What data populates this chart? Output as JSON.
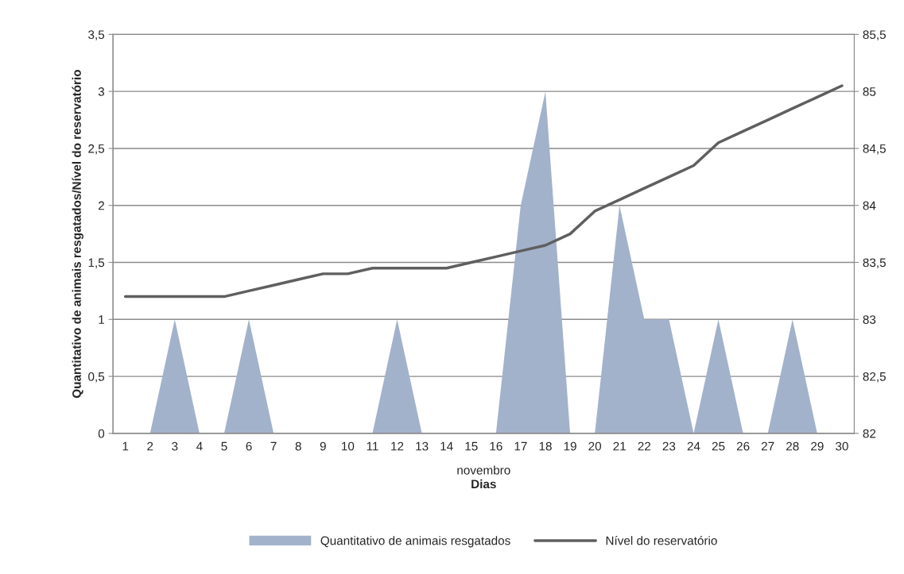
{
  "chart_data": {
    "type": "area",
    "xlabel": "Dias",
    "ylabel": "Quantitativo de animais resgatados/Nível do reservatório",
    "annotations": [
      "novembro"
    ],
    "categories": [
      "1",
      "2",
      "3",
      "4",
      "5",
      "6",
      "7",
      "8",
      "9",
      "10",
      "11",
      "12",
      "13",
      "14",
      "15",
      "16",
      "17",
      "18",
      "19",
      "20",
      "21",
      "22",
      "23",
      "24",
      "25",
      "26",
      "27",
      "28",
      "29",
      "30"
    ],
    "series": [
      {
        "name": "Quantitativo de animais resgatados",
        "color": "#a3b2cb",
        "values": [
          0,
          0,
          1,
          0,
          0,
          1,
          0,
          0,
          0,
          0,
          0,
          1,
          0,
          0,
          0,
          0,
          2,
          3,
          0,
          0,
          2,
          1,
          1,
          0,
          1,
          0,
          0,
          1,
          0,
          0
        ]
      },
      {
        "name": "Nível do reservatório",
        "type": "line",
        "axis": "y2",
        "color": "#5f5f5f",
        "values": [
          83.2,
          83.2,
          83.2,
          83.2,
          83.2,
          83.25,
          83.3,
          83.35,
          83.4,
          83.4,
          83.45,
          83.45,
          83.45,
          83.45,
          83.5,
          83.55,
          83.6,
          83.65,
          83.75,
          83.95,
          84.05,
          84.15,
          84.25,
          84.35,
          84.55,
          84.65,
          84.75,
          84.85,
          84.95,
          85.05
        ]
      }
    ],
    "ylim": [
      0,
      3.5
    ],
    "yticks": [
      0,
      {
        "value": 0.5,
        "label": "0,5"
      },
      1,
      {
        "value": 1.5,
        "label": "1,5"
      },
      2,
      {
        "value": 2.5,
        "label": "2,5"
      },
      3,
      {
        "value": 3.5,
        "label": "3,5"
      }
    ],
    "y2lim": [
      82,
      85.5
    ],
    "y2ticks": [
      82,
      {
        "value": 82.5,
        "label": "82,5"
      },
      83,
      {
        "value": 83.5,
        "label": "83,5"
      },
      84,
      {
        "value": 84.5,
        "label": "84,5"
      },
      85,
      {
        "value": 85.5,
        "label": "85,5"
      }
    ],
    "grid": "y",
    "legend": "bottom",
    "line_style": "solid",
    "marker": "none"
  }
}
